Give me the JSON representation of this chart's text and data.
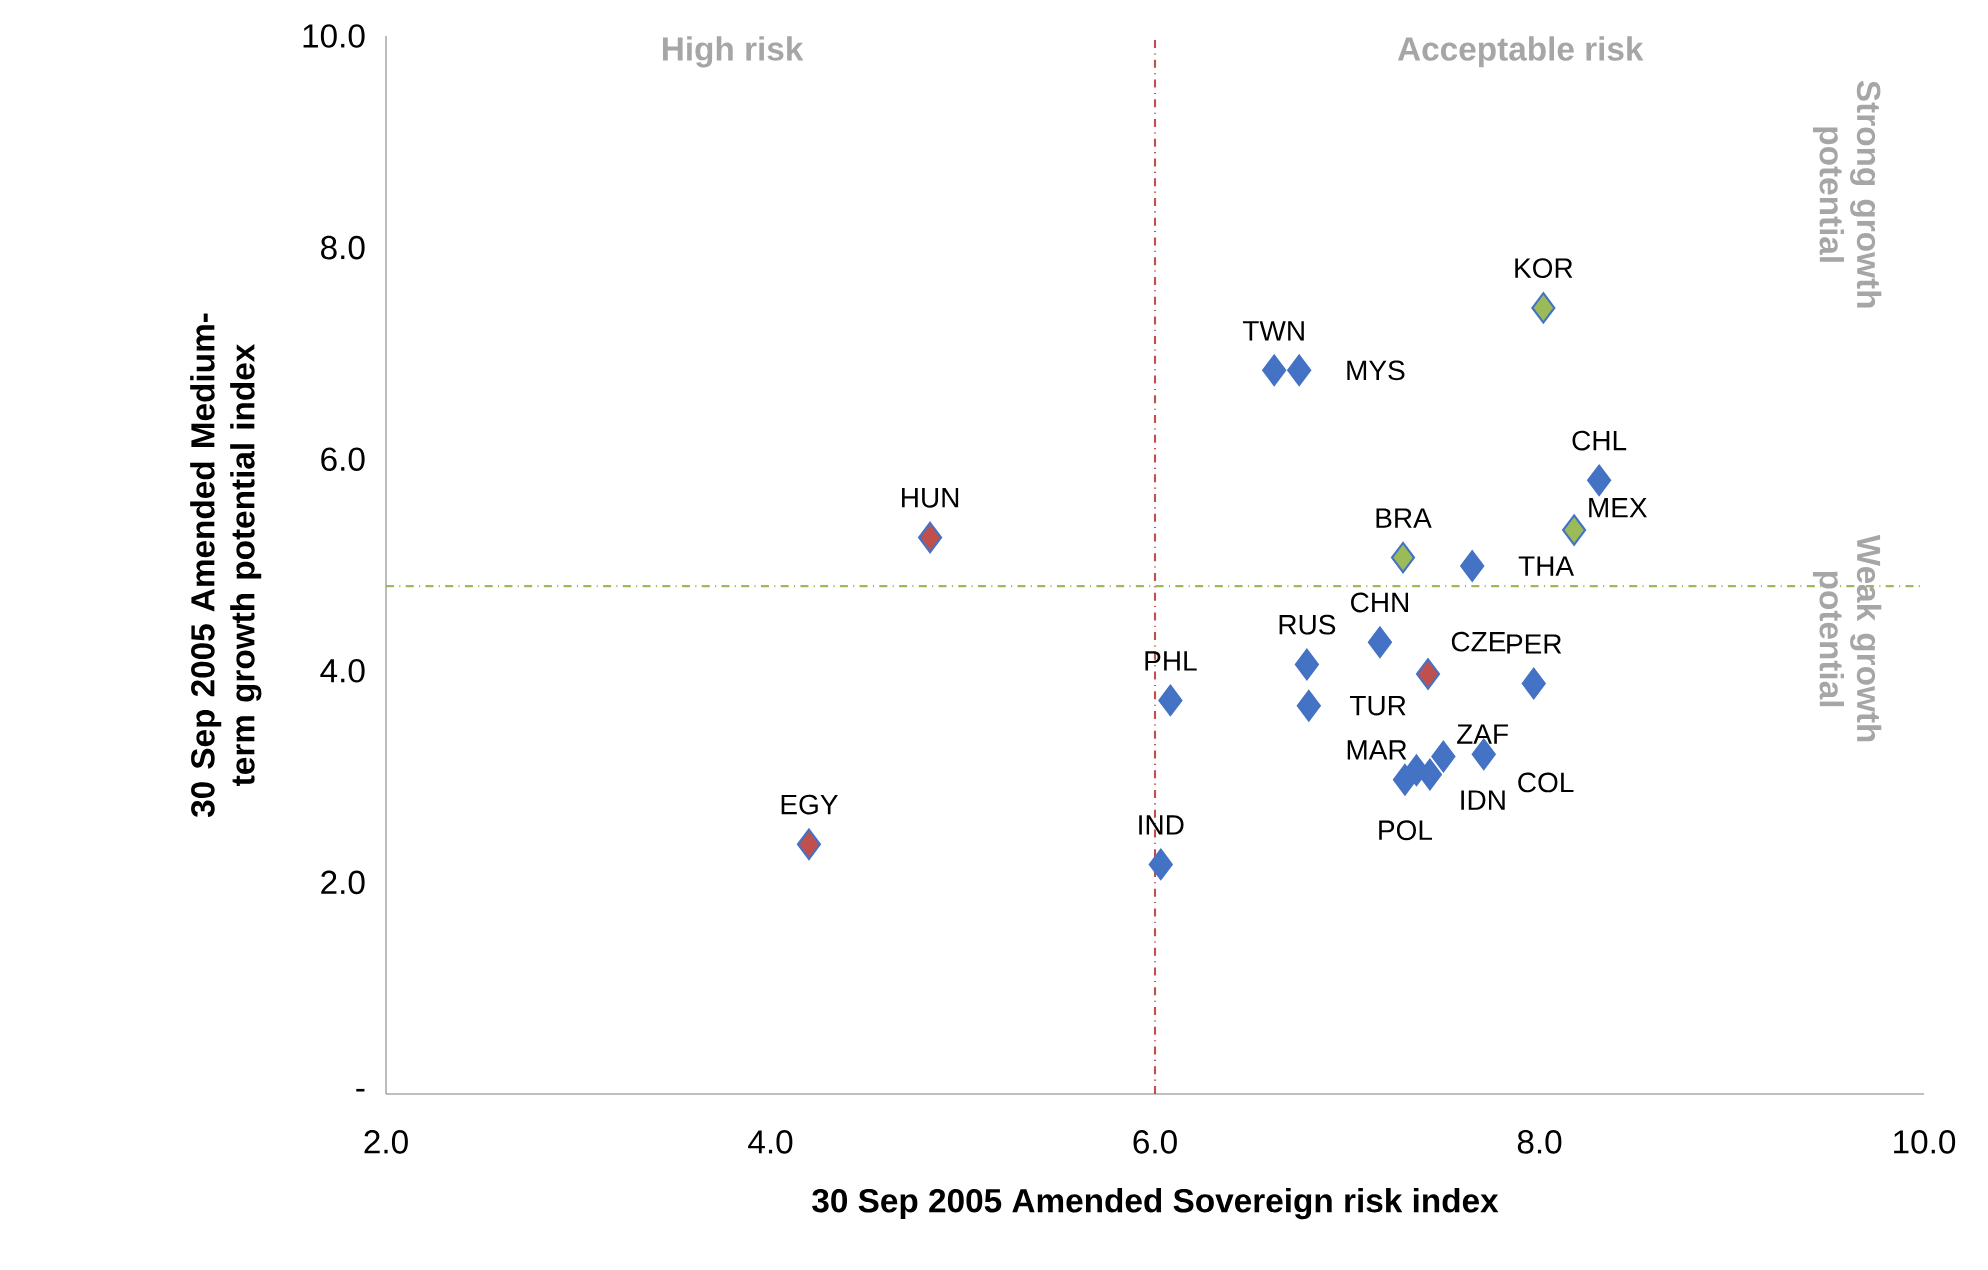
{
  "chart_data": {
    "type": "scatter",
    "xlabel": "30 Sep 2005 Amended Sovereign risk index",
    "ylabel": "30 Sep 2005 Amended Medium-term growth potential index",
    "x": [
      4.2,
      4.83,
      6.03,
      6.08,
      6.8,
      6.79,
      6.62,
      6.75,
      7.17,
      7.42,
      7.29,
      7.65,
      8.02,
      8.31,
      8.18,
      7.97,
      7.71,
      7.5,
      7.43,
      7.36,
      7.3
    ],
    "values": [
      2.36,
      5.26,
      2.17,
      3.72,
      3.67,
      4.06,
      6.84,
      6.84,
      4.27,
      3.97,
      5.07,
      4.99,
      7.43,
      5.8,
      5.33,
      3.88,
      3.21,
      3.19,
      3.02,
      3.06,
      2.97
    ],
    "colors": [
      "#c0504d",
      "#c0504d",
      "#4472c4",
      "#4472c4",
      "#4472c4",
      "#4472c4",
      "#4472c4",
      "#4472c4",
      "#4472c4",
      "#c0504d",
      "#9bbb59",
      "#4472c4",
      "#9bbb59",
      "#4472c4",
      "#9bbb59",
      "#4472c4",
      "#4472c4",
      "#4472c4",
      "#4472c4",
      "#4472c4",
      "#4472c4"
    ],
    "marker": "diamond",
    "xlim": [
      2,
      10
    ],
    "ylim": [
      0,
      10
    ],
    "xticks": [
      {
        "value": 2,
        "label": "2.0"
      },
      {
        "value": 4,
        "label": "4.0"
      },
      {
        "value": 6,
        "label": "6.0"
      },
      {
        "value": 8,
        "label": "8.0"
      },
      {
        "value": 10,
        "label": "10.0"
      }
    ],
    "yticks": [
      {
        "value": 0,
        "label": "-"
      },
      {
        "value": 2,
        "label": "2.0"
      },
      {
        "value": 4,
        "label": "4.0"
      },
      {
        "value": 6,
        "label": "6.0"
      },
      {
        "value": 8,
        "label": "8.0"
      },
      {
        "value": 10,
        "label": "10.0"
      }
    ],
    "ref_lines": [
      {
        "axis": "x",
        "value": 6.0,
        "color": "#c0504d",
        "line_style": "dashdot"
      },
      {
        "axis": "y",
        "value": 4.8,
        "color": "#9bbb59",
        "line_style": "dashdot"
      }
    ],
    "annotations": [
      {
        "text": "EGY",
        "x": 4.2,
        "y": 2.36
      },
      {
        "text": "HUN",
        "x": 4.83,
        "y": 5.26
      },
      {
        "text": "IND",
        "x": 6.03,
        "y": 2.17
      },
      {
        "text": "PHL",
        "x": 6.08,
        "y": 3.72
      },
      {
        "text": "TUR",
        "x": 6.8,
        "y": 3.67
      },
      {
        "text": "RUS",
        "x": 6.79,
        "y": 4.06
      },
      {
        "text": "TWN",
        "x": 6.62,
        "y": 6.84
      },
      {
        "text": "MYS",
        "x": 6.75,
        "y": 6.84
      },
      {
        "text": "CHN",
        "x": 7.17,
        "y": 4.27
      },
      {
        "text": "CZE",
        "x": 7.42,
        "y": 3.97
      },
      {
        "text": "BRA",
        "x": 7.29,
        "y": 5.07
      },
      {
        "text": "THA",
        "x": 7.65,
        "y": 4.99
      },
      {
        "text": "KOR",
        "x": 8.02,
        "y": 7.43
      },
      {
        "text": "CHL",
        "x": 8.31,
        "y": 5.8
      },
      {
        "text": "MEX",
        "x": 8.18,
        "y": 5.33
      },
      {
        "text": "PER",
        "x": 7.97,
        "y": 3.88
      },
      {
        "text": "COL",
        "x": 7.71,
        "y": 3.21
      },
      {
        "text": "ZAF",
        "x": 7.5,
        "y": 3.19
      },
      {
        "text": "IDN",
        "x": 7.43,
        "y": 3.02
      },
      {
        "text": "MAR",
        "x": 7.36,
        "y": 3.06
      },
      {
        "text": "POL",
        "x": 7.3,
        "y": 2.97
      },
      "High risk",
      "Acceptable risk",
      "Strong growth potential",
      "Weak growth potential"
    ]
  }
}
